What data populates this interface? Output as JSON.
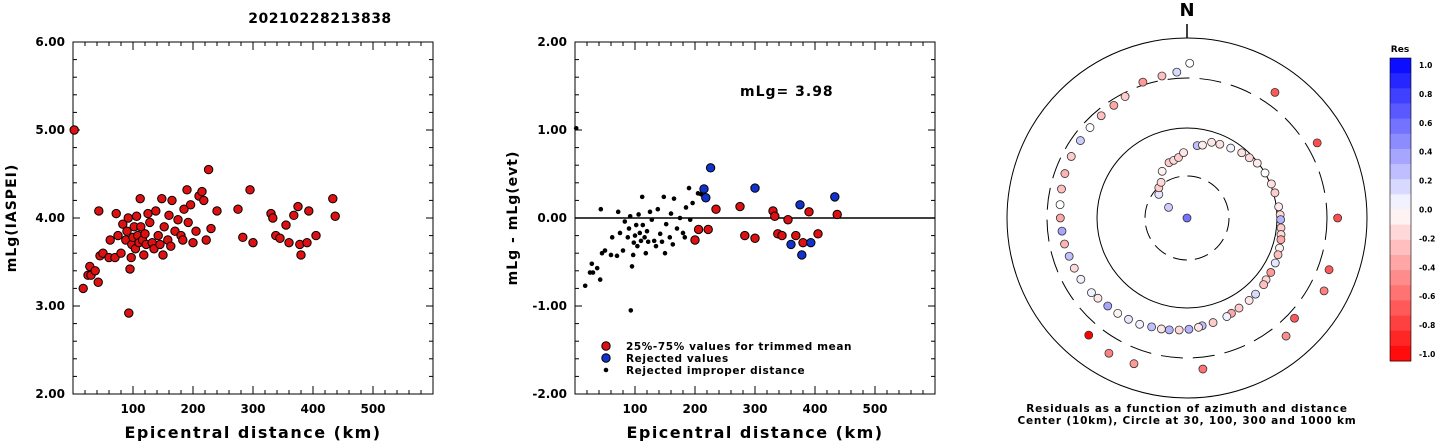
{
  "title": "20210228213838",
  "chart_data": [
    {
      "type": "scatter",
      "xlabel": "Epicentral distance (km)",
      "ylabel": "mLg(IASPEI)",
      "xlim": [
        0,
        600
      ],
      "ylim": [
        2.0,
        6.0
      ],
      "xticks": [
        "100",
        "200",
        "300",
        "400",
        "500"
      ],
      "yticks": [
        "2.00",
        "3.00",
        "4.00",
        "5.00",
        "6.00"
      ],
      "grid": false,
      "points": [
        [
          2,
          5.0
        ],
        [
          17,
          3.2
        ],
        [
          25,
          3.35
        ],
        [
          28,
          3.45
        ],
        [
          30,
          3.35
        ],
        [
          37,
          3.4
        ],
        [
          42,
          3.27
        ],
        [
          43,
          4.08
        ],
        [
          45,
          3.57
        ],
        [
          50,
          3.6
        ],
        [
          60,
          3.55
        ],
        [
          62,
          3.75
        ],
        [
          70,
          3.55
        ],
        [
          72,
          4.05
        ],
        [
          75,
          3.8
        ],
        [
          80,
          3.6
        ],
        [
          83,
          3.93
        ],
        [
          88,
          3.75
        ],
        [
          90,
          3.85
        ],
        [
          92,
          4.0
        ],
        [
          93,
          2.92
        ],
        [
          95,
          3.42
        ],
        [
          97,
          3.55
        ],
        [
          98,
          3.7
        ],
        [
          100,
          3.78
        ],
        [
          102,
          3.9
        ],
        [
          104,
          3.65
        ],
        [
          106,
          4.02
        ],
        [
          108,
          3.8
        ],
        [
          110,
          3.72
        ],
        [
          112,
          4.22
        ],
        [
          113,
          3.9
        ],
        [
          116,
          3.75
        ],
        [
          118,
          3.58
        ],
        [
          120,
          3.82
        ],
        [
          122,
          3.7
        ],
        [
          125,
          4.05
        ],
        [
          128,
          3.95
        ],
        [
          132,
          3.72
        ],
        [
          135,
          3.65
        ],
        [
          138,
          4.08
        ],
        [
          142,
          3.8
        ],
        [
          145,
          3.7
        ],
        [
          148,
          4.22
        ],
        [
          150,
          3.58
        ],
        [
          152,
          3.9
        ],
        [
          158,
          3.75
        ],
        [
          160,
          4.03
        ],
        [
          163,
          3.68
        ],
        [
          165,
          4.2
        ],
        [
          170,
          3.85
        ],
        [
          175,
          3.98
        ],
        [
          180,
          3.8
        ],
        [
          183,
          3.75
        ],
        [
          185,
          4.1
        ],
        [
          190,
          4.32
        ],
        [
          192,
          3.95
        ],
        [
          196,
          4.15
        ],
        [
          200,
          3.72
        ],
        [
          205,
          3.85
        ],
        [
          210,
          4.25
        ],
        [
          215,
          4.3
        ],
        [
          218,
          4.2
        ],
        [
          222,
          3.75
        ],
        [
          226,
          4.55
        ],
        [
          230,
          3.88
        ],
        [
          240,
          4.08
        ],
        [
          275,
          4.1
        ],
        [
          283,
          3.78
        ],
        [
          295,
          4.32
        ],
        [
          300,
          3.72
        ],
        [
          330,
          4.05
        ],
        [
          333,
          4.0
        ],
        [
          338,
          3.8
        ],
        [
          345,
          3.77
        ],
        [
          355,
          3.92
        ],
        [
          360,
          3.72
        ],
        [
          368,
          4.03
        ],
        [
          375,
          4.13
        ],
        [
          378,
          3.7
        ],
        [
          380,
          3.58
        ],
        [
          390,
          3.72
        ],
        [
          393,
          4.08
        ],
        [
          405,
          3.8
        ],
        [
          433,
          4.22
        ],
        [
          437,
          4.02
        ]
      ]
    },
    {
      "type": "scatter",
      "xlabel": "Epicentral distance (km)",
      "ylabel": "mLg - mLg(evt)",
      "xlim": [
        0,
        600
      ],
      "ylim": [
        -2.0,
        2.0
      ],
      "xticks": [
        "100",
        "200",
        "300",
        "400",
        "500"
      ],
      "yticks": [
        "-2.00",
        "-1.00",
        "0.00",
        "1.00",
        "2.00"
      ],
      "annotation": "mLg= 3.98",
      "legend": {
        "placement": "bottom-left",
        "entries": [
          {
            "label": "25%-75% values for trimmed mean",
            "color": "#dd1111"
          },
          {
            "label": "Rejected values",
            "color": "#1133cc"
          },
          {
            "label": "Rejected improper distance",
            "color": "#000000"
          }
        ]
      },
      "series": [
        {
          "values": [
            [
              200,
              -0.25
            ],
            [
              206,
              -0.13
            ],
            [
              222,
              -0.13
            ],
            [
              235,
              0.1
            ],
            [
              275,
              0.13
            ],
            [
              283,
              -0.2
            ],
            [
              300,
              -0.23
            ],
            [
              330,
              0.08
            ],
            [
              333,
              0.02
            ],
            [
              338,
              -0.18
            ],
            [
              345,
              -0.2
            ],
            [
              355,
              -0.02
            ],
            [
              368,
              -0.2
            ],
            [
              380,
              -0.28
            ],
            [
              390,
              0.07
            ],
            [
              405,
              -0.18
            ],
            [
              437,
              0.04
            ]
          ]
        },
        {
          "values": [
            [
              215,
              0.33
            ],
            [
              218,
              0.23
            ],
            [
              226,
              0.57
            ],
            [
              300,
              0.34
            ],
            [
              360,
              -0.3
            ],
            [
              375,
              0.15
            ],
            [
              378,
              -0.42
            ],
            [
              393,
              -0.28
            ],
            [
              433,
              0.24
            ]
          ]
        },
        {
          "values": [
            [
              2,
              1.02
            ],
            [
              17,
              -0.77
            ],
            [
              25,
              -0.62
            ],
            [
              28,
              -0.52
            ],
            [
              30,
              -0.62
            ],
            [
              37,
              -0.57
            ],
            [
              42,
              -0.7
            ],
            [
              43,
              0.1
            ],
            [
              45,
              -0.4
            ],
            [
              50,
              -0.37
            ],
            [
              60,
              -0.42
            ],
            [
              62,
              -0.22
            ],
            [
              70,
              -0.43
            ],
            [
              72,
              0.07
            ],
            [
              75,
              -0.17
            ],
            [
              80,
              -0.37
            ],
            [
              83,
              -0.04
            ],
            [
              88,
              -0.22
            ],
            [
              90,
              -0.12
            ],
            [
              92,
              0.02
            ],
            [
              93,
              -1.05
            ],
            [
              95,
              -0.55
            ],
            [
              97,
              -0.42
            ],
            [
              98,
              -0.28
            ],
            [
              100,
              -0.2
            ],
            [
              102,
              -0.08
            ],
            [
              104,
              -0.32
            ],
            [
              106,
              0.04
            ],
            [
              108,
              -0.17
            ],
            [
              110,
              -0.26
            ],
            [
              112,
              0.24
            ],
            [
              113,
              -0.08
            ],
            [
              116,
              -0.22
            ],
            [
              118,
              -0.4
            ],
            [
              120,
              -0.15
            ],
            [
              122,
              -0.27
            ],
            [
              125,
              0.07
            ],
            [
              128,
              -0.02
            ],
            [
              132,
              -0.26
            ],
            [
              135,
              -0.32
            ],
            [
              138,
              0.1
            ],
            [
              142,
              -0.18
            ],
            [
              145,
              -0.27
            ],
            [
              148,
              0.24
            ],
            [
              150,
              -0.4
            ],
            [
              152,
              -0.07
            ],
            [
              158,
              -0.22
            ],
            [
              160,
              0.05
            ],
            [
              163,
              -0.3
            ],
            [
              165,
              0.22
            ],
            [
              170,
              -0.12
            ],
            [
              175,
              0.0
            ],
            [
              180,
              -0.17
            ],
            [
              183,
              -0.22
            ],
            [
              185,
              0.12
            ],
            [
              190,
              0.34
            ],
            [
              192,
              -0.02
            ],
            [
              196,
              0.17
            ],
            [
              205,
              0.28
            ],
            [
              210,
              0.27
            ]
          ]
        }
      ]
    },
    {
      "type": "polar-scatter",
      "north_label": "N",
      "caption_line1": "Residuals as a function of azimuth and distance",
      "caption_line2": "Center (10km), Circle at 30, 100, 300 and 1000 km",
      "colorbar": {
        "title": "Res",
        "ticks": [
          "1.0",
          "0.8",
          "0.6",
          "0.4",
          "0.2",
          "0.0",
          "-0.2",
          "-0.4",
          "-0.6",
          "-0.8",
          "-1.0"
        ],
        "max_color": "#0000ff",
        "min_color": "#ff0000"
      },
      "points": [
        [
          -79,
          0.55
        ],
        [
          -60,
          0.2
        ],
        [
          -50,
          0.1
        ],
        [
          -43,
          -0.2
        ],
        [
          -36,
          -0.15
        ],
        [
          -28,
          -0.05
        ],
        [
          -18,
          -0.2
        ],
        [
          -13,
          -0.15
        ],
        [
          -8,
          -0.2
        ],
        [
          -3,
          -0.1
        ],
        [
          8,
          0.25
        ],
        [
          12,
          -0.08
        ],
        [
          18,
          -0.1
        ],
        [
          24,
          -0.12
        ],
        [
          32,
          0.05
        ],
        [
          40,
          -0.12
        ],
        [
          46,
          -0.15
        ],
        [
          52,
          -0.08
        ],
        [
          60,
          0.0
        ],
        [
          68,
          -0.12
        ],
        [
          74,
          -0.2
        ],
        [
          83,
          -0.08
        ],
        [
          88,
          -0.15
        ],
        [
          91,
          0.3
        ],
        [
          96,
          -0.2
        ],
        [
          100,
          -0.15
        ],
        [
          103,
          -0.35
        ],
        [
          108,
          -0.05
        ],
        [
          112,
          -0.25
        ],
        [
          117,
          0.1
        ],
        [
          123,
          -0.4
        ],
        [
          128,
          -0.15
        ],
        [
          131,
          -0.25
        ],
        [
          138,
          0.15
        ],
        [
          143,
          -0.1
        ],
        [
          150,
          -0.2
        ],
        [
          155,
          -0.35
        ],
        [
          158,
          0.05
        ],
        [
          166,
          -0.2
        ],
        [
          172,
          0.25
        ],
        [
          174,
          -0.1
        ],
        [
          179,
          0.3
        ],
        [
          184,
          -0.15
        ],
        [
          189,
          0.3
        ],
        [
          193,
          -0.1
        ],
        [
          198,
          0.25
        ],
        [
          204,
          0.05
        ],
        [
          210,
          0.1
        ],
        [
          216,
          -0.05
        ],
        [
          222,
          0.35
        ],
        [
          228,
          -0.1
        ],
        [
          232,
          0.05
        ],
        [
          240,
          0.05
        ],
        [
          246,
          -0.15
        ],
        [
          252,
          0.25
        ],
        [
          258,
          -0.3
        ],
        [
          264,
          0.35
        ],
        [
          270,
          -0.35
        ],
        [
          276,
          0.0
        ],
        [
          283,
          -0.25
        ],
        [
          290,
          -0.3
        ],
        [
          298,
          -0.2
        ],
        [
          306,
          0.2
        ],
        [
          313,
          0.0
        ],
        [
          320,
          -0.25
        ],
        [
          327,
          -0.35
        ],
        [
          333,
          -0.2
        ],
        [
          342,
          -0.4
        ],
        [
          350,
          -0.25
        ],
        [
          356,
          0.15
        ],
        [
          133,
          -0.65
        ],
        [
          60,
          -0.7
        ],
        [
          90,
          -0.7
        ],
        [
          110,
          -0.65
        ],
        [
          174,
          -0.55
        ],
        [
          220,
          -1.0
        ],
        [
          35,
          -0.65
        ],
        [
          140,
          -0.45
        ],
        [
          1,
          0.0
        ],
        [
          200,
          -0.4
        ],
        [
          118,
          -0.5
        ],
        [
          210,
          -0.5
        ]
      ]
    }
  ]
}
